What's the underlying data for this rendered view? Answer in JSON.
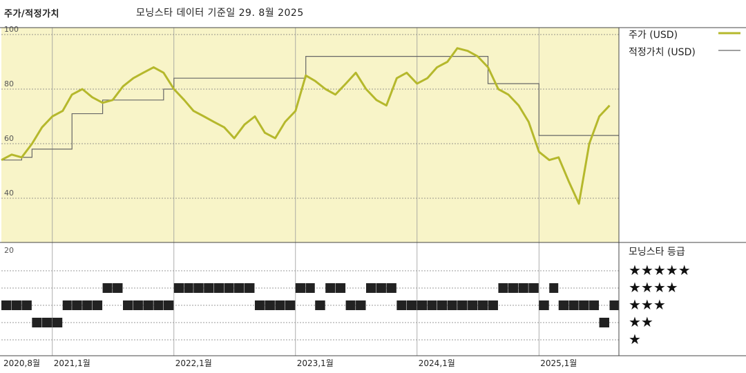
{
  "header": {
    "left_title": "주가/적정가치",
    "right_title": "모닝스타 데이터 기준일 29. 8월 2025"
  },
  "legend": {
    "price_label": "주가 (USD)",
    "fair_value_label": "적정가치 (USD)"
  },
  "rating": {
    "title": "모닝스타 등급",
    "stars": [
      "★★★★★",
      "★★★★",
      "★★★",
      "★★",
      "★"
    ]
  },
  "colors": {
    "price_line": "#b5b82c",
    "fair_value_line": "#666666",
    "plot_bg": "#f8f4c8",
    "rating_bar": "#222222"
  },
  "chart_data": {
    "type": "line",
    "ylim": [
      20,
      100
    ],
    "yticks": [
      40,
      60,
      80,
      100
    ],
    "rating_panel_label": "20",
    "xticks": [
      "2020,8월",
      "2021,1월",
      "2022,1월",
      "2023,1월",
      "2024,1월",
      "2025,1월"
    ],
    "x_range": [
      "2020-08",
      "2025-08-29"
    ],
    "series": [
      {
        "name": "주가 (USD)",
        "x": [
          "2020-08",
          "2020-09",
          "2020-10",
          "2020-11",
          "2020-12",
          "2021-01",
          "2021-02",
          "2021-03",
          "2021-04",
          "2021-05",
          "2021-06",
          "2021-07",
          "2021-08",
          "2021-09",
          "2021-10",
          "2021-11",
          "2021-12",
          "2022-01",
          "2022-02",
          "2022-03",
          "2022-04",
          "2022-05",
          "2022-06",
          "2022-07",
          "2022-08",
          "2022-09",
          "2022-10",
          "2022-11",
          "2022-12",
          "2023-01",
          "2023-02",
          "2023-03",
          "2023-04",
          "2023-05",
          "2023-06",
          "2023-07",
          "2023-08",
          "2023-09",
          "2023-10",
          "2023-11",
          "2023-12",
          "2024-01",
          "2024-02",
          "2024-03",
          "2024-04",
          "2024-05",
          "2024-06",
          "2024-07",
          "2024-08",
          "2024-09",
          "2024-10",
          "2024-11",
          "2024-12",
          "2025-01",
          "2025-02",
          "2025-03",
          "2025-04",
          "2025-05",
          "2025-06",
          "2025-07",
          "2025-08"
        ],
        "values": [
          54,
          56,
          55,
          60,
          66,
          70,
          72,
          78,
          80,
          77,
          75,
          76,
          81,
          84,
          86,
          88,
          86,
          80,
          76,
          72,
          70,
          68,
          66,
          62,
          67,
          70,
          64,
          62,
          68,
          72,
          85,
          83,
          80,
          78,
          82,
          86,
          80,
          76,
          74,
          84,
          86,
          82,
          84,
          88,
          90,
          95,
          94,
          92,
          88,
          80,
          78,
          74,
          68,
          57,
          54,
          55,
          46,
          38,
          60,
          70,
          74
        ]
      },
      {
        "name": "적정가치 (USD)",
        "x": [
          "2020-08",
          "2020-09",
          "2020-10",
          "2020-11",
          "2020-12",
          "2021-01",
          "2021-03",
          "2021-04",
          "2021-06",
          "2021-08",
          "2021-09",
          "2021-12",
          "2022-01",
          "2022-04",
          "2022-08",
          "2022-11",
          "2023-01",
          "2023-02",
          "2023-05",
          "2023-07",
          "2023-10",
          "2023-12",
          "2024-01",
          "2024-05",
          "2024-07",
          "2024-08",
          "2024-12",
          "2025-01",
          "2025-08"
        ],
        "values": [
          54,
          54,
          55,
          58,
          58,
          58,
          71,
          71,
          76,
          76,
          76,
          80,
          84,
          84,
          84,
          84,
          84,
          92,
          92,
          92,
          92,
          92,
          92,
          92,
          92,
          82,
          82,
          63,
          63
        ]
      }
    ],
    "rating_series": {
      "name": "모닝스타 등급",
      "x": [
        "2020-08",
        "2020-09",
        "2020-10",
        "2020-11",
        "2020-12",
        "2021-01",
        "2021-02",
        "2021-03",
        "2021-04",
        "2021-05",
        "2021-06",
        "2021-07",
        "2021-08",
        "2021-09",
        "2021-10",
        "2021-11",
        "2021-12",
        "2022-01",
        "2022-02",
        "2022-03",
        "2022-04",
        "2022-05",
        "2022-06",
        "2022-07",
        "2022-08",
        "2022-09",
        "2022-10",
        "2022-11",
        "2022-12",
        "2023-01",
        "2023-02",
        "2023-03",
        "2023-04",
        "2023-05",
        "2023-06",
        "2023-07",
        "2023-08",
        "2023-09",
        "2023-10",
        "2023-11",
        "2023-12",
        "2024-01",
        "2024-02",
        "2024-03",
        "2024-04",
        "2024-05",
        "2024-06",
        "2024-07",
        "2024-08",
        "2024-09",
        "2024-10",
        "2024-11",
        "2024-12",
        "2025-01",
        "2025-02",
        "2025-03",
        "2025-04",
        "2025-05",
        "2025-06",
        "2025-07",
        "2025-08"
      ],
      "values": [
        3,
        3,
        3,
        2,
        2,
        2,
        3,
        3,
        3,
        3,
        4,
        4,
        3,
        3,
        3,
        3,
        3,
        4,
        4,
        4,
        4,
        4,
        4,
        4,
        4,
        3,
        3,
        3,
        3,
        4,
        4,
        3,
        4,
        4,
        3,
        3,
        4,
        4,
        4,
        3,
        3,
        3,
        3,
        3,
        3,
        3,
        3,
        3,
        3,
        4,
        4,
        4,
        4,
        3,
        4,
        3,
        3,
        3,
        3,
        2,
        3
      ]
    }
  }
}
